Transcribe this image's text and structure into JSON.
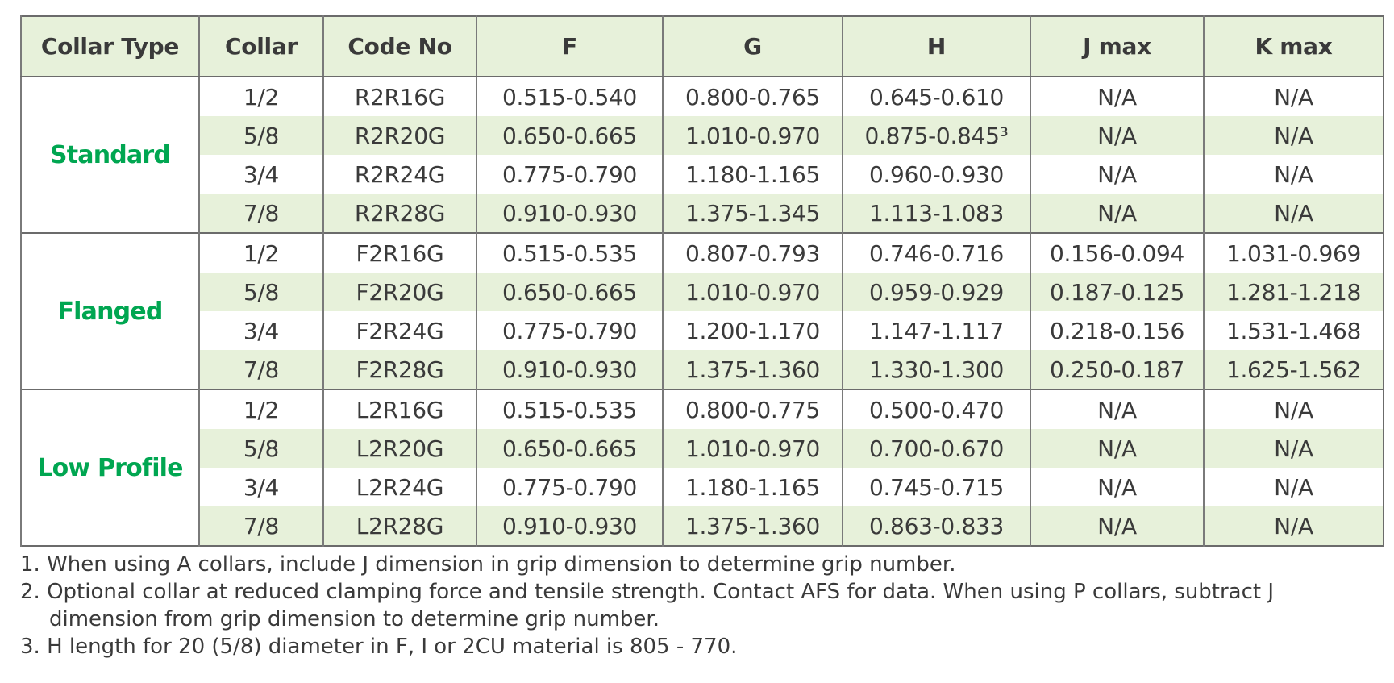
{
  "table": {
    "header": [
      "Collar Type",
      "Collar",
      "Code No",
      "F",
      "G",
      "H",
      "J max",
      "K max"
    ],
    "groups": [
      {
        "name": "Standard",
        "rows": [
          [
            "1/2",
            "R2R16G",
            "0.515-0.540",
            "0.800-0.765",
            "0.645-0.610",
            "N/A",
            "N/A"
          ],
          [
            "5/8",
            "R2R20G",
            "0.650-0.665",
            "1.010-0.970",
            "0.875-0.845³",
            "N/A",
            "N/A"
          ],
          [
            "3/4",
            "R2R24G",
            "0.775-0.790",
            "1.180-1.165",
            "0.960-0.930",
            "N/A",
            "N/A"
          ],
          [
            "7/8",
            "R2R28G",
            "0.910-0.930",
            "1.375-1.345",
            "1.113-1.083",
            "N/A",
            "N/A"
          ]
        ]
      },
      {
        "name": "Flanged",
        "rows": [
          [
            "1/2",
            "F2R16G",
            "0.515-0.535",
            "0.807-0.793",
            "0.746-0.716",
            "0.156-0.094",
            "1.031-0.969"
          ],
          [
            "5/8",
            "F2R20G",
            "0.650-0.665",
            "1.010-0.970",
            "0.959-0.929",
            "0.187-0.125",
            "1.281-1.218"
          ],
          [
            "3/4",
            "F2R24G",
            "0.775-0.790",
            "1.200-1.170",
            "1.147-1.117",
            "0.218-0.156",
            "1.531-1.468"
          ],
          [
            "7/8",
            "F2R28G",
            "0.910-0.930",
            "1.375-1.360",
            "1.330-1.300",
            "0.250-0.187",
            "1.625-1.562"
          ]
        ]
      },
      {
        "name": "Low Profile",
        "rows": [
          [
            "1/2",
            "L2R16G",
            "0.515-0.535",
            "0.800-0.775",
            "0.500-0.470",
            "N/A",
            "N/A"
          ],
          [
            "5/8",
            "L2R20G",
            "0.650-0.665",
            "1.010-0.970",
            "0.700-0.670",
            "N/A",
            "N/A"
          ],
          [
            "3/4",
            "L2R24G",
            "0.775-0.790",
            "1.180-1.165",
            "0.745-0.715",
            "N/A",
            "N/A"
          ],
          [
            "7/8",
            "L2R28G",
            "0.910-0.930",
            "1.375-1.360",
            "0.863-0.833",
            "N/A",
            "N/A"
          ]
        ]
      }
    ]
  },
  "notes": [
    "1. When using A collars, include J dimension in grip dimension to determine grip number.",
    "2. Optional collar at reduced clamping force and tensile strength. Contact AFS for data. When using P collars, subtract J dimension from grip dimension to determine grip number.",
    "3. H length for 20 (5/8) diameter in F, I or 2CU material is 805 - 770."
  ]
}
